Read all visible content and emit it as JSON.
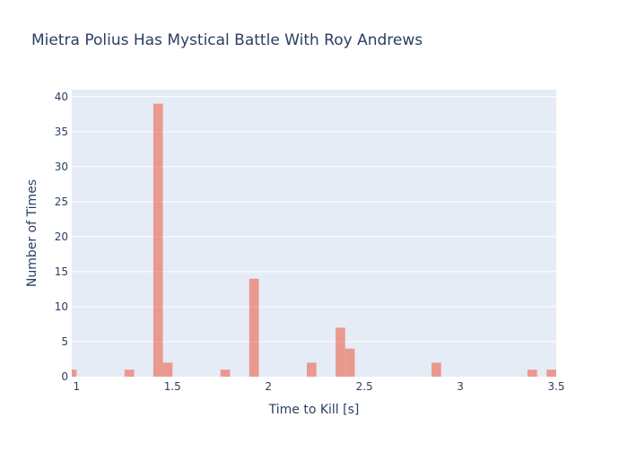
{
  "chart_data": {
    "type": "bar",
    "title": "Mietra Polius Has Mystical Battle With Roy Andrews",
    "xlabel": "Time to Kill [s]",
    "ylabel": "Number of Times",
    "xlim": [
      0.975,
      3.5
    ],
    "ylim": [
      0,
      41
    ],
    "bin_width": 0.05,
    "x_ticks": [
      {
        "value": 1,
        "label": "1"
      },
      {
        "value": 1.5,
        "label": "1.5"
      },
      {
        "value": 2,
        "label": "2"
      },
      {
        "value": 2.5,
        "label": "2.5"
      },
      {
        "value": 3,
        "label": "3"
      },
      {
        "value": 3.5,
        "label": "3.5"
      }
    ],
    "y_ticks": [
      {
        "value": 0,
        "label": "0"
      },
      {
        "value": 5,
        "label": "5"
      },
      {
        "value": 10,
        "label": "10"
      },
      {
        "value": 15,
        "label": "15"
      },
      {
        "value": 20,
        "label": "20"
      },
      {
        "value": 25,
        "label": "25"
      },
      {
        "value": 30,
        "label": "30"
      },
      {
        "value": 35,
        "label": "35"
      },
      {
        "value": 40,
        "label": "40"
      }
    ],
    "bins": [
      {
        "start": 0.95,
        "end": 1.0,
        "count": 1
      },
      {
        "start": 1.25,
        "end": 1.3,
        "count": 1
      },
      {
        "start": 1.4,
        "end": 1.45,
        "count": 39
      },
      {
        "start": 1.45,
        "end": 1.5,
        "count": 2
      },
      {
        "start": 1.75,
        "end": 1.8,
        "count": 1
      },
      {
        "start": 1.9,
        "end": 1.95,
        "count": 14
      },
      {
        "start": 2.2,
        "end": 2.25,
        "count": 2
      },
      {
        "start": 2.35,
        "end": 2.4,
        "count": 7
      },
      {
        "start": 2.4,
        "end": 2.45,
        "count": 4
      },
      {
        "start": 2.85,
        "end": 2.9,
        "count": 2
      },
      {
        "start": 3.35,
        "end": 3.4,
        "count": 1
      },
      {
        "start": 3.45,
        "end": 3.5,
        "count": 1
      }
    ],
    "grid": true,
    "colors": {
      "bar": "#ef553b",
      "plot_bg": "#e5ecf6",
      "grid": "#ffffff",
      "text": "#2a3f5f"
    }
  }
}
